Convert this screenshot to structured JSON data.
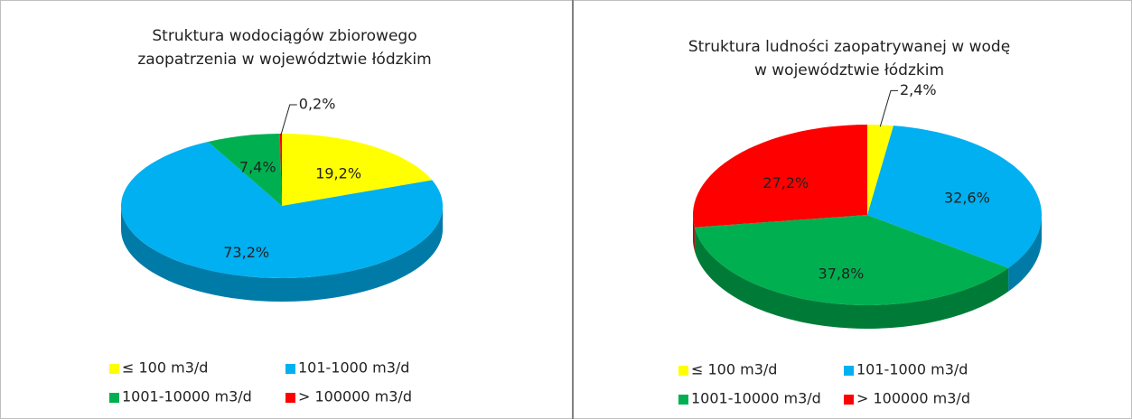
{
  "chart_data": [
    {
      "type": "pie3d",
      "title": [
        "Struktura wodociągów zbiorowego",
        "zaopatrzenia w województwie łódzkim"
      ],
      "categories": [
        "≤ 100 m3/d",
        "101-1000 m3/d",
        "1001-10000 m3/d",
        "> 100000 m3/d"
      ],
      "colors": [
        "#ffff00",
        "#00b0f0",
        "#00b050",
        "#ff0000"
      ],
      "values": [
        19.2,
        73.2,
        7.4,
        0.2
      ],
      "value_labels": [
        "19,2%",
        "73,2%",
        "7,4%",
        "0,2%"
      ]
    },
    {
      "type": "pie3d",
      "title": [
        "Struktura ludności zaopatrywanej w wodę",
        "w województwie łódzkim"
      ],
      "categories": [
        "≤ 100 m3/d",
        "101-1000 m3/d",
        "1001-10000 m3/d",
        "> 100000 m3/d"
      ],
      "colors": [
        "#ffff00",
        "#00b0f0",
        "#00b050",
        "#ff0000"
      ],
      "values": [
        2.4,
        32.6,
        37.8,
        27.2
      ],
      "value_labels": [
        "2,4%",
        "32,6%",
        "37,8%",
        "27,2%"
      ]
    }
  ]
}
